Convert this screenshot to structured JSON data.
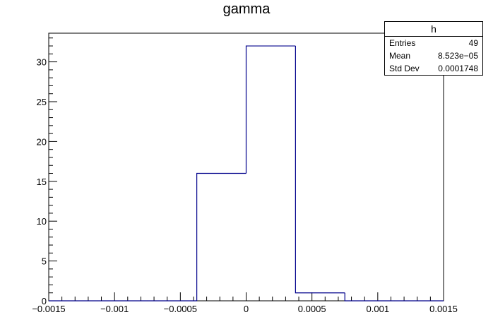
{
  "chart_data": {
    "type": "bar",
    "title": "gamma",
    "xlabel": "",
    "ylabel": "",
    "xlim": [
      -0.0015,
      0.0015
    ],
    "ylim": [
      0,
      33.6
    ],
    "bin_edges": [
      -0.0015,
      -0.001125,
      -0.00075,
      -0.000375,
      0,
      0.000375,
      0.00075,
      0.001125,
      0.0015
    ],
    "values": [
      0,
      0,
      0,
      16,
      32,
      1,
      0,
      0
    ],
    "x_ticks": [
      -0.0015,
      -0.001,
      -0.0005,
      0,
      0.0005,
      0.001,
      0.0015
    ],
    "x_tick_labels": [
      "−0.0015",
      "−0.001",
      "−0.0005",
      "0",
      "0.0005",
      "0.001",
      "0.0015"
    ],
    "y_ticks": [
      0,
      5,
      10,
      15,
      20,
      25,
      30
    ],
    "y_tick_labels": [
      "0",
      "5",
      "10",
      "15",
      "20",
      "25",
      "30"
    ],
    "grid": false,
    "line_color": "#00008b",
    "stats_box": {
      "name": "h",
      "rows": [
        {
          "label": "Entries",
          "value": "49"
        },
        {
          "label": "Mean",
          "value": "8.523e−05"
        },
        {
          "label": "Std Dev",
          "value": "0.0001748"
        }
      ]
    }
  }
}
